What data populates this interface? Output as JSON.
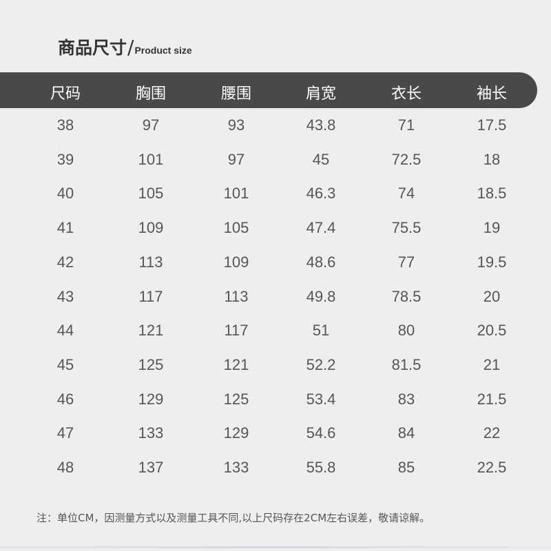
{
  "title": {
    "cn": "商品尺寸",
    "sep": "/",
    "en": "Product size"
  },
  "table": {
    "headers": [
      "尺码",
      "胸围",
      "腰围",
      "肩宽",
      "衣长",
      "袖长"
    ],
    "rows": [
      [
        "38",
        "97",
        "93",
        "43.8",
        "71",
        "17.5"
      ],
      [
        "39",
        "101",
        "97",
        "45",
        "72.5",
        "18"
      ],
      [
        "40",
        "105",
        "101",
        "46.3",
        "74",
        "18.5"
      ],
      [
        "41",
        "109",
        "105",
        "47.4",
        "75.5",
        "19"
      ],
      [
        "42",
        "113",
        "109",
        "48.6",
        "77",
        "19.5"
      ],
      [
        "43",
        "117",
        "113",
        "49.8",
        "78.5",
        "20"
      ],
      [
        "44",
        "121",
        "117",
        "51",
        "80",
        "20.5"
      ],
      [
        "45",
        "125",
        "121",
        "52.2",
        "81.5",
        "21"
      ],
      [
        "46",
        "129",
        "125",
        "53.4",
        "83",
        "21.5"
      ],
      [
        "47",
        "133",
        "129",
        "54.6",
        "84",
        "22"
      ],
      [
        "48",
        "137",
        "133",
        "55.8",
        "85",
        "22.5"
      ]
    ]
  },
  "note": "注：单位CM，因测量方式以及测量工具不同,以上尺码存在2CM左右误差，敬请谅解。",
  "colors": {
    "background": "#eeeeee",
    "header_bar": "#4a4949",
    "text": "#555555"
  }
}
